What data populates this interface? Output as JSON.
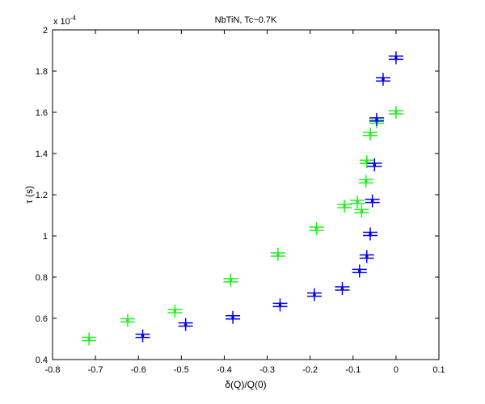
{
  "chart_data": {
    "type": "scatter",
    "title": "NbTiN, Tc~0.7K",
    "xlabel": "δ(Q)/Q(0)",
    "ylabel": "τ (s)",
    "y_exponent_label": "x 10",
    "y_exponent_power": "-4",
    "xlim": [
      -0.8,
      0.1
    ],
    "ylim": [
      0.4,
      2.0
    ],
    "xticks": [
      -0.8,
      -0.7,
      -0.6,
      -0.5,
      -0.4,
      -0.3,
      -0.2,
      -0.1,
      0,
      0.1
    ],
    "xtick_labels": [
      "-0.8",
      "-0.7",
      "-0.6",
      "-0.5",
      "-0.4",
      "-0.3",
      "-0.2",
      "-0.1",
      "0",
      "0.1"
    ],
    "yticks": [
      0.4,
      0.6,
      0.8,
      1.0,
      1.2,
      1.4,
      1.6,
      1.8,
      2.0
    ],
    "ytick_labels": [
      "0.4",
      "0.6",
      "0.8",
      "1",
      "1.2",
      "1.4",
      "1.6",
      "1.8",
      "2"
    ],
    "grid": false,
    "legend": "none",
    "series": [
      {
        "color": "#22ee22",
        "points": [
          {
            "x": -0.715,
            "y": 0.5
          },
          {
            "x": -0.625,
            "y": 0.59
          },
          {
            "x": -0.515,
            "y": 0.635
          },
          {
            "x": -0.385,
            "y": 0.785
          },
          {
            "x": -0.275,
            "y": 0.91
          },
          {
            "x": -0.185,
            "y": 1.035
          },
          {
            "x": -0.12,
            "y": 1.145
          },
          {
            "x": -0.09,
            "y": 1.165
          },
          {
            "x": -0.08,
            "y": 1.12
          },
          {
            "x": -0.07,
            "y": 1.265
          },
          {
            "x": -0.068,
            "y": 1.36
          },
          {
            "x": -0.06,
            "y": 1.495
          },
          {
            "x": -0.045,
            "y": 1.555
          },
          {
            "x": 0.0,
            "y": 1.6
          }
        ]
      },
      {
        "color": "#0000ee",
        "points": [
          {
            "x": -0.59,
            "y": 0.515
          },
          {
            "x": -0.49,
            "y": 0.57
          },
          {
            "x": -0.38,
            "y": 0.605
          },
          {
            "x": -0.27,
            "y": 0.665
          },
          {
            "x": -0.19,
            "y": 0.715
          },
          {
            "x": -0.125,
            "y": 0.745
          },
          {
            "x": -0.085,
            "y": 0.83
          },
          {
            "x": -0.068,
            "y": 0.9
          },
          {
            "x": -0.06,
            "y": 1.01
          },
          {
            "x": -0.055,
            "y": 1.17
          },
          {
            "x": -0.05,
            "y": 1.345
          },
          {
            "x": -0.045,
            "y": 1.565
          },
          {
            "x": -0.03,
            "y": 1.76
          },
          {
            "x": 0.0,
            "y": 1.865
          }
        ]
      }
    ]
  }
}
